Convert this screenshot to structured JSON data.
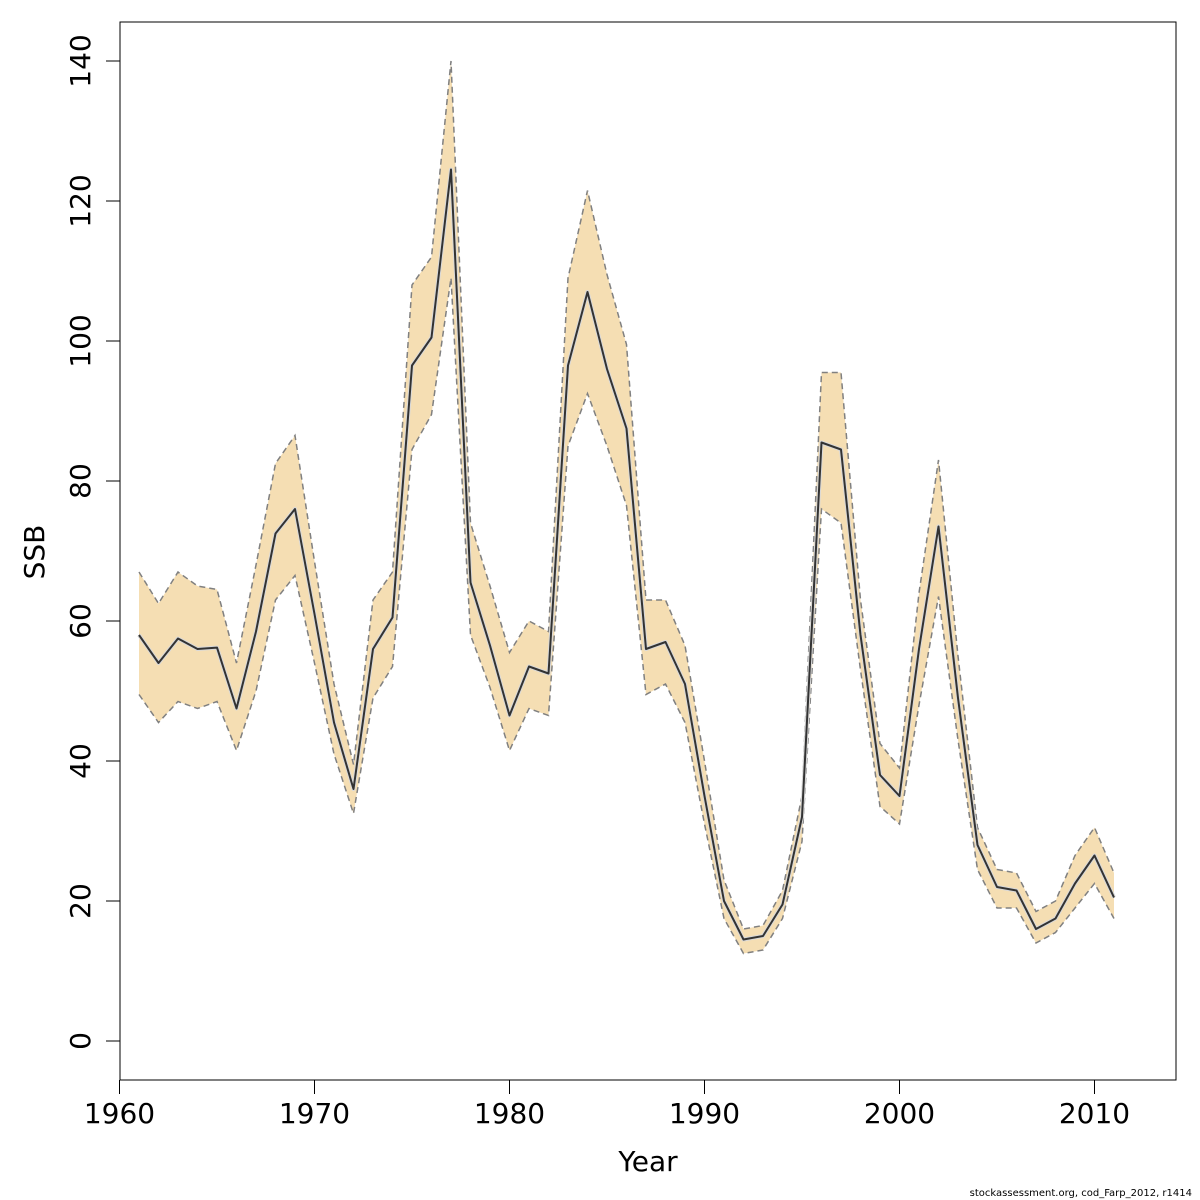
{
  "footer_text": "stockassessment.org, cod_Farp_2012, r1414",
  "colors": {
    "band": "#f5deb3",
    "line": "#333333",
    "bound": "#808080"
  },
  "chart_data": {
    "type": "line",
    "title": "",
    "xlabel": "Year",
    "ylabel": "SSB",
    "xlim": [
      1960,
      2012
    ],
    "ylim": [
      0,
      140
    ],
    "xticks": [
      1960,
      1970,
      1980,
      1990,
      2000,
      2010
    ],
    "yticks": [
      0,
      20,
      40,
      60,
      80,
      100,
      120,
      140
    ],
    "grid": false,
    "legend": "none",
    "x": [
      1961,
      1962,
      1963,
      1964,
      1965,
      1966,
      1967,
      1968,
      1969,
      1970,
      1971,
      1972,
      1973,
      1974,
      1975,
      1976,
      1977,
      1978,
      1979,
      1980,
      1981,
      1982,
      1983,
      1984,
      1985,
      1986,
      1987,
      1988,
      1989,
      1990,
      1991,
      1992,
      1993,
      1994,
      1995,
      1996,
      1997,
      1998,
      1999,
      2000,
      2001,
      2002,
      2003,
      2004,
      2005,
      2006,
      2007,
      2008,
      2009,
      2010,
      2011
    ],
    "series": [
      {
        "name": "SSB estimate",
        "values": [
          58,
          54,
          57.5,
          56,
          56.2,
          47.5,
          58.5,
          72.5,
          76,
          61,
          45.5,
          36,
          56,
          60.5,
          96.5,
          100.5,
          124.5,
          65.5,
          56.5,
          46.5,
          53.5,
          52.5,
          96.5,
          107,
          96,
          87.5,
          56,
          57,
          51,
          35,
          20,
          14.5,
          15,
          19.5,
          32,
          85.5,
          84.5,
          58,
          38,
          35,
          56,
          73.5,
          49,
          28,
          22,
          21.5,
          16,
          17.5,
          22.5,
          26.5,
          20.5
        ]
      },
      {
        "name": "upper bound",
        "values": [
          67,
          62.5,
          67,
          65,
          64.5,
          54,
          68,
          82.5,
          86.5,
          68.5,
          51,
          39.5,
          63,
          67,
          108,
          112,
          140,
          74,
          65,
          55.5,
          60,
          58.5,
          109,
          121.5,
          109.5,
          99.5,
          63,
          63,
          56.5,
          40,
          23,
          16,
          16.5,
          21.5,
          35,
          95.5,
          95.5,
          63,
          42.5,
          39,
          64,
          83,
          55,
          30.5,
          24.5,
          24,
          18.5,
          20,
          26.5,
          30.5,
          24
        ]
      },
      {
        "name": "lower bound",
        "values": [
          49.5,
          45.5,
          48.5,
          47.5,
          48.5,
          41.5,
          50,
          63,
          66.5,
          54,
          41,
          32.5,
          49,
          53.5,
          84.5,
          89.5,
          109,
          58,
          50.5,
          41.5,
          47.5,
          46.5,
          85,
          92.5,
          85,
          76.5,
          49.5,
          51,
          45.5,
          31,
          17.5,
          12.5,
          13,
          17.5,
          28.5,
          76,
          74,
          53,
          33.5,
          31,
          48,
          63.5,
          43,
          24.5,
          19,
          19,
          14,
          15.5,
          19,
          22.5,
          17.5
        ]
      }
    ]
  }
}
